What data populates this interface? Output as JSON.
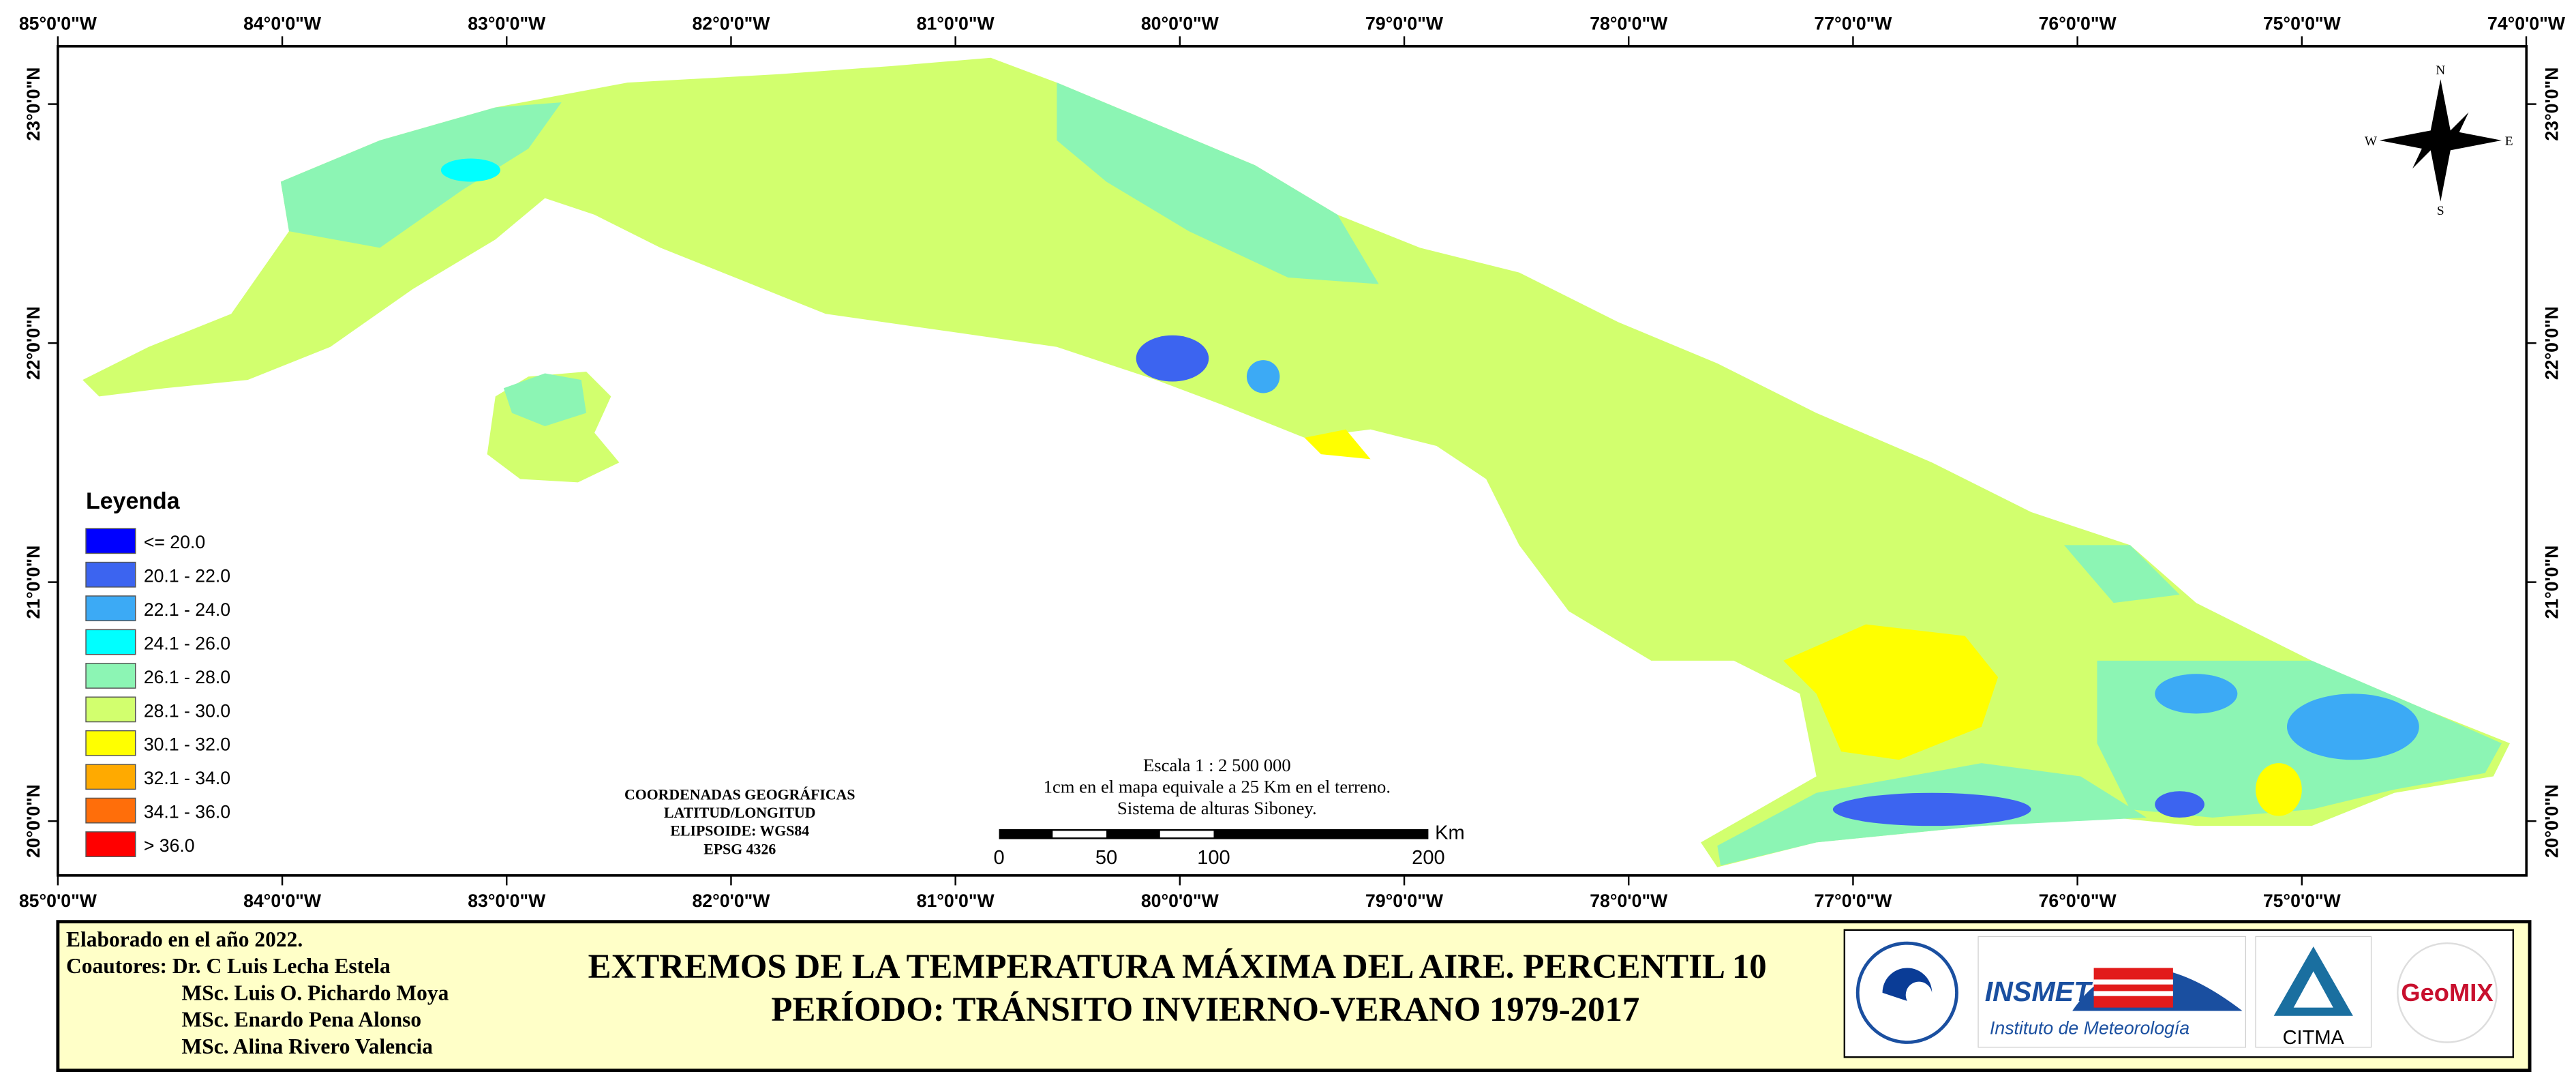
{
  "map": {
    "graticule": {
      "lon_top": [
        {
          "value": -85,
          "label": "85°0'0\"W"
        },
        {
          "value": -84,
          "label": "84°0'0\"W"
        },
        {
          "value": -83,
          "label": "83°0'0\"W"
        },
        {
          "value": -82,
          "label": "82°0'0\"W"
        },
        {
          "value": -81,
          "label": "81°0'0\"W"
        },
        {
          "value": -80,
          "label": "80°0'0\"W"
        },
        {
          "value": -79,
          "label": "79°0'0\"W"
        },
        {
          "value": -78,
          "label": "78°0'0\"W"
        },
        {
          "value": -77,
          "label": "77°0'0\"W"
        },
        {
          "value": -76,
          "label": "76°0'0\"W"
        },
        {
          "value": -75,
          "label": "75°0'0\"W"
        },
        {
          "value": -74,
          "label": "74°0'0\"W"
        }
      ],
      "lon_bottom": [
        {
          "value": -85,
          "label": "85°0'0\"W"
        },
        {
          "value": -84,
          "label": "84°0'0\"W"
        },
        {
          "value": -83,
          "label": "83°0'0\"W"
        },
        {
          "value": -82,
          "label": "82°0'0\"W"
        },
        {
          "value": -81,
          "label": "81°0'0\"W"
        },
        {
          "value": -80,
          "label": "80°0'0\"W"
        },
        {
          "value": -79,
          "label": "79°0'0\"W"
        },
        {
          "value": -78,
          "label": "78°0'0\"W"
        },
        {
          "value": -77,
          "label": "77°0'0\"W"
        },
        {
          "value": -76,
          "label": "76°0'0\"W"
        },
        {
          "value": -75,
          "label": "75°0'0\"W"
        }
      ],
      "lat": [
        {
          "value": 23,
          "label": "23°0'0\"N"
        },
        {
          "value": 22,
          "label": "22°0'0\"N"
        },
        {
          "value": 21,
          "label": "21°0'0\"N"
        },
        {
          "value": 20,
          "label": "20°0'0\"N"
        }
      ]
    },
    "legend": {
      "title": "Leyenda",
      "items": [
        {
          "label": "<= 20.0",
          "color": "#0000ff"
        },
        {
          "label": "20.1 - 22.0",
          "color": "#3c64f0"
        },
        {
          "label": "22.1 - 24.0",
          "color": "#3caaf5"
        },
        {
          "label": "24.1 - 26.0",
          "color": "#00ffff"
        },
        {
          "label": "26.1 - 28.0",
          "color": "#8cf5b4"
        },
        {
          "label": "28.1 - 30.0",
          "color": "#d2ff6e"
        },
        {
          "label": "30.1 - 32.0",
          "color": "#ffff00"
        },
        {
          "label": "32.1 - 34.0",
          "color": "#ffaa00"
        },
        {
          "label": "34.1 - 36.0",
          "color": "#ff6e0a"
        },
        {
          "label": "> 36.0",
          "color": "#ff0000"
        }
      ]
    },
    "coordinates_note": [
      "COORDENADAS GEOGRÁFICAS",
      "LATITUD/LONGITUD",
      "ELIPSOIDE: WGS84",
      "EPSG 4326"
    ],
    "scale": {
      "lines": [
        "Escala 1 : 2 500 000",
        "1cm en el mapa equivale a 25 Km en el terreno.",
        "Sistema de alturas Siboney."
      ],
      "unit": "Km",
      "ticks": [
        0,
        50,
        100,
        200
      ]
    },
    "compass": {
      "n": "N",
      "s": "S",
      "e": "E",
      "w": "W"
    }
  },
  "footer": {
    "credits": [
      "Elaborado en el año 2022.",
      "Coautores: Dr. C Luis Lecha Estela",
      "MSc. Luis O. Pichardo Moya",
      "MSc. Enardo Pena Alonso",
      "MSc. Alina Rivero Valencia"
    ],
    "title": [
      "EXTREMOS DE LA TEMPERATURA MÁXIMA DEL AIRE. PERCENTIL 10",
      "PERÍODO: TRÁNSITO INVIERNO-VERANO 1979-2017"
    ],
    "logos": {
      "insmet": "INSMET",
      "insmet_sub": "Instituto de Meteorología",
      "citma": "CITMA",
      "geomix": "GeoMIX"
    }
  }
}
